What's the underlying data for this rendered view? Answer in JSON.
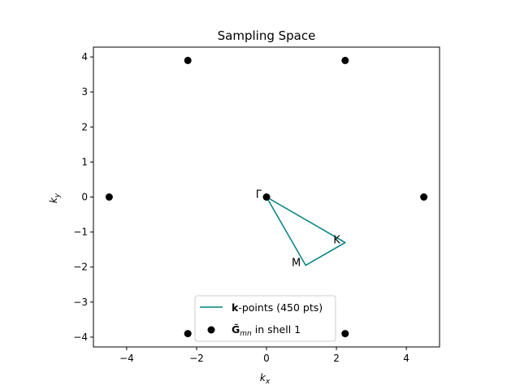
{
  "chart_data": {
    "type": "scatter",
    "title": "Sampling Space",
    "xlabel_base": "k",
    "xlabel_sub": "x",
    "ylabel_base": "k",
    "ylabel_sub": "y",
    "xlim": [
      -4.95,
      4.95
    ],
    "ylim": [
      -4.28,
      4.28
    ],
    "xticks": [
      -4,
      -2,
      0,
      2,
      4
    ],
    "yticks": [
      -4,
      -3,
      -2,
      -1,
      0,
      1,
      2,
      3,
      4
    ],
    "grid": false,
    "legend_placement": "lower-center",
    "series": [
      {
        "kind": "line",
        "color": "#008080",
        "x": [
          0,
          2.25,
          1.12,
          0
        ],
        "y": [
          0,
          -1.3,
          -1.95,
          0
        ]
      },
      {
        "kind": "scatter",
        "color": "#000000",
        "x": [
          0,
          -2.25,
          2.25,
          -4.5,
          4.5,
          -2.25,
          2.25
        ],
        "y": [
          0,
          3.9,
          3.9,
          0,
          0,
          -3.9,
          -3.9
        ]
      }
    ],
    "point_labels": [
      {
        "text": "Γ",
        "x": 0,
        "y": 0
      },
      {
        "text": "K",
        "x": 2.25,
        "y": -1.3
      },
      {
        "text": "M",
        "x": 1.12,
        "y": -1.95
      }
    ],
    "legend": [
      {
        "bold": "k",
        "rest": "-points (450 pts)"
      },
      {
        "bold": "G̃",
        "sub": "mn",
        "rest": " in shell 1"
      }
    ]
  }
}
